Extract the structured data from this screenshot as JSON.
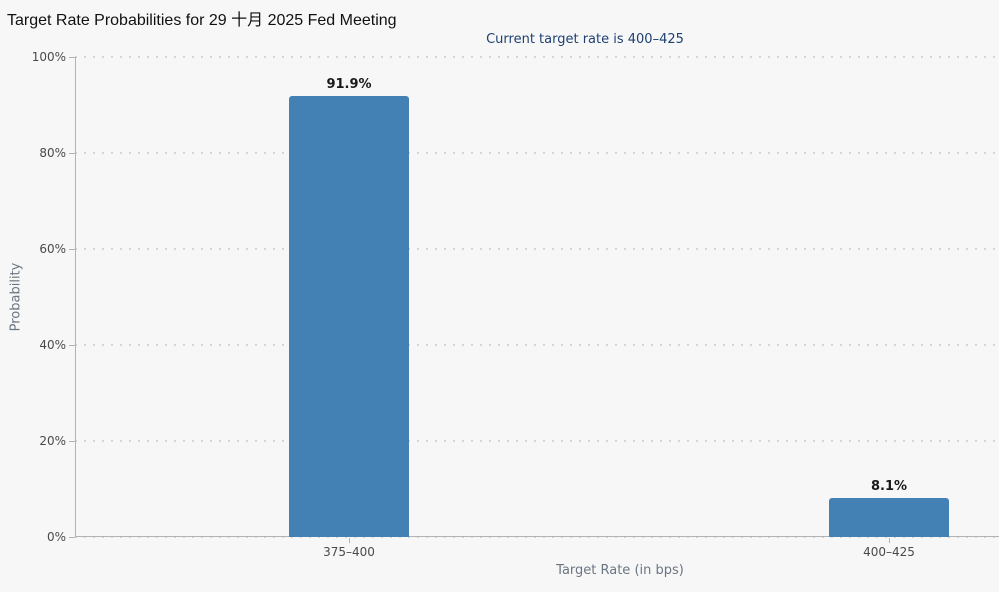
{
  "header": {
    "title": "Target Rate Probabilities for 29 十月 2025 Fed Meeting",
    "subtitle": "Current target rate is 400–425"
  },
  "chart_data": {
    "type": "bar",
    "title": "Target Rate Probabilities for 29 十月 2025 Fed Meeting",
    "subtitle": "Current target rate is 400–425",
    "categories": [
      "375–400",
      "400–425"
    ],
    "values": [
      91.9,
      8.1
    ],
    "value_labels": [
      "91.9%",
      "8.1%"
    ],
    "xlabel": "Target Rate (in bps)",
    "ylabel": "Probability",
    "ylim": [
      0,
      100
    ],
    "y_ticks": [
      {
        "value": 0,
        "label": "0%"
      },
      {
        "value": 20,
        "label": "20%"
      },
      {
        "value": 40,
        "label": "40%"
      },
      {
        "value": 60,
        "label": "60%"
      },
      {
        "value": 80,
        "label": "80%"
      },
      {
        "value": 100,
        "label": "100%"
      }
    ],
    "grid": "horizontal-dotted",
    "legend": "none",
    "colors": {
      "bar": "#4380b4",
      "subtitle_text": "#1e4072",
      "axis_line": "#b3b3b3",
      "tick_label": "#4a4a4a",
      "axis_title": "#6b7683",
      "background": "#f7f7f7"
    }
  }
}
